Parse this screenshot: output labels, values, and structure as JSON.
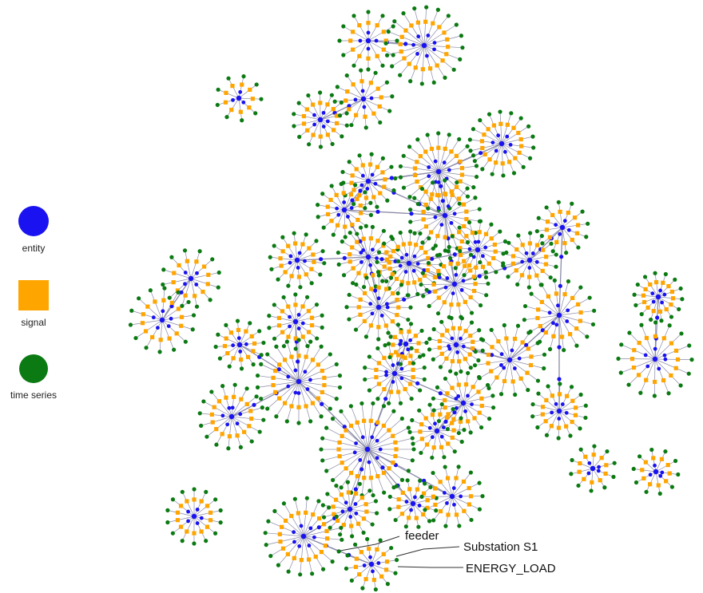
{
  "colors": {
    "entity": "#1a12f0",
    "signal": "#ffa500",
    "time_series": "#0b7a12",
    "edge": "#8a8aa8"
  },
  "legend": [
    {
      "key": "entity",
      "label": "entity",
      "shape": "circle"
    },
    {
      "key": "signal",
      "label": "signal",
      "shape": "square"
    },
    {
      "key": "time_series",
      "label": "time series",
      "shape": "circle"
    }
  ],
  "annotations": [
    {
      "label": "feeder"
    },
    {
      "label": "Substation S1"
    },
    {
      "label": "ENERGY_LOAD"
    }
  ]
}
